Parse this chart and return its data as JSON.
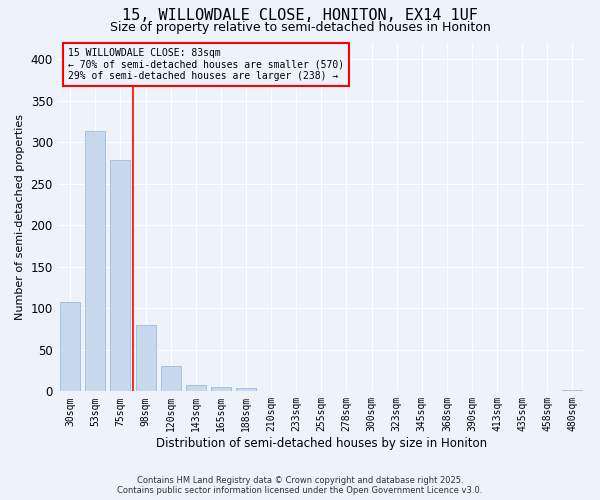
{
  "title": "15, WILLOWDALE CLOSE, HONITON, EX14 1UF",
  "subtitle": "Size of property relative to semi-detached houses in Honiton",
  "xlabel": "Distribution of semi-detached houses by size in Honiton",
  "ylabel": "Number of semi-detached properties",
  "categories": [
    "30sqm",
    "53sqm",
    "75sqm",
    "98sqm",
    "120sqm",
    "143sqm",
    "165sqm",
    "188sqm",
    "210sqm",
    "233sqm",
    "255sqm",
    "278sqm",
    "300sqm",
    "323sqm",
    "345sqm",
    "368sqm",
    "390sqm",
    "413sqm",
    "435sqm",
    "458sqm",
    "480sqm"
  ],
  "values": [
    107,
    313,
    278,
    80,
    30,
    8,
    5,
    4,
    1,
    0,
    0,
    0,
    0,
    0,
    0,
    0,
    0,
    0,
    0,
    0,
    2
  ],
  "bar_color": "#c8d9ee",
  "bar_edge_color": "#a0bcd8",
  "background_color": "#eef2fb",
  "grid_color": "#ffffff",
  "property_label": "15 WILLOWDALE CLOSE: 83sqm",
  "annotation_line1": "← 70% of semi-detached houses are smaller (570)",
  "annotation_line2": "29% of semi-detached houses are larger (238) →",
  "red_line_x": 2.5,
  "ylim": [
    0,
    420
  ],
  "yticks": [
    0,
    50,
    100,
    150,
    200,
    250,
    300,
    350,
    400
  ],
  "footer_line1": "Contains HM Land Registry data © Crown copyright and database right 2025.",
  "footer_line2": "Contains public sector information licensed under the Open Government Licence v3.0.",
  "title_fontsize": 11,
  "subtitle_fontsize": 9
}
